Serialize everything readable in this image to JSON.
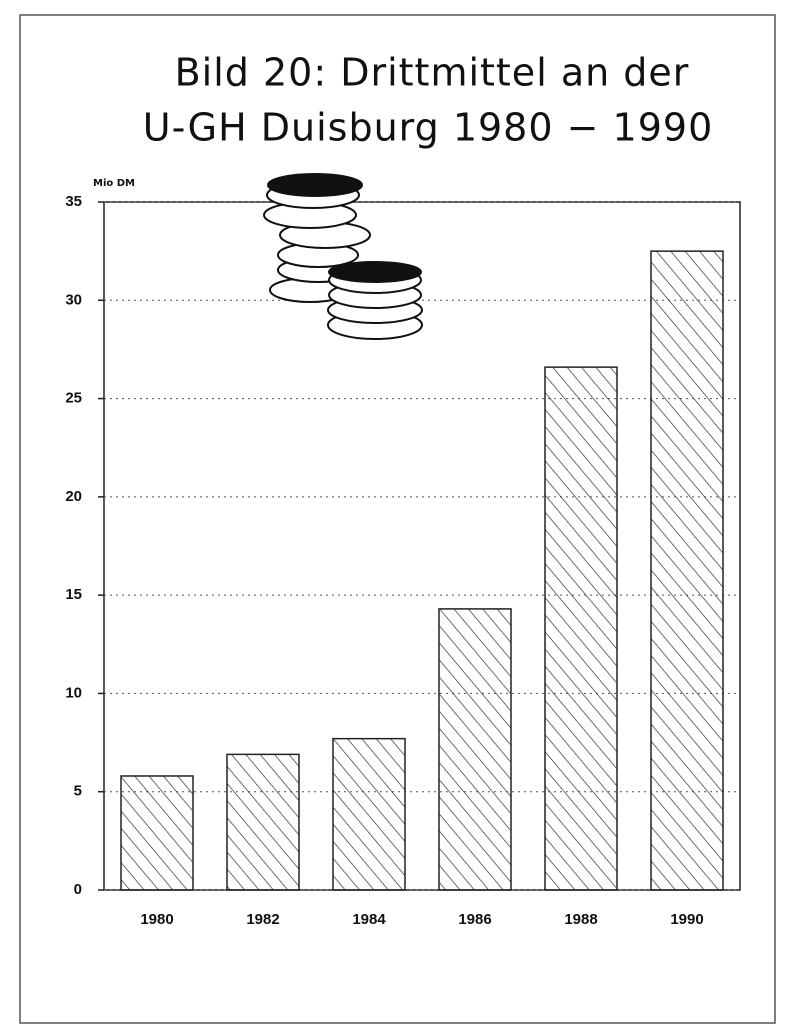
{
  "chart_data": {
    "type": "bar",
    "title": [
      "Bild 20: Drittmittel an der",
      "U-GH Duisburg 1980 − 1990"
    ],
    "y_label": "Mio DM",
    "categories": [
      "1980",
      "1982",
      "1984",
      "1986",
      "1988",
      "1990"
    ],
    "values": [
      5.8,
      6.9,
      7.7,
      14.3,
      26.6,
      32.5
    ],
    "color": "#222222",
    "ylim": [
      0,
      35
    ],
    "yticks": [
      0,
      5,
      10,
      15,
      20,
      25,
      30,
      35
    ],
    "grid": true
  }
}
